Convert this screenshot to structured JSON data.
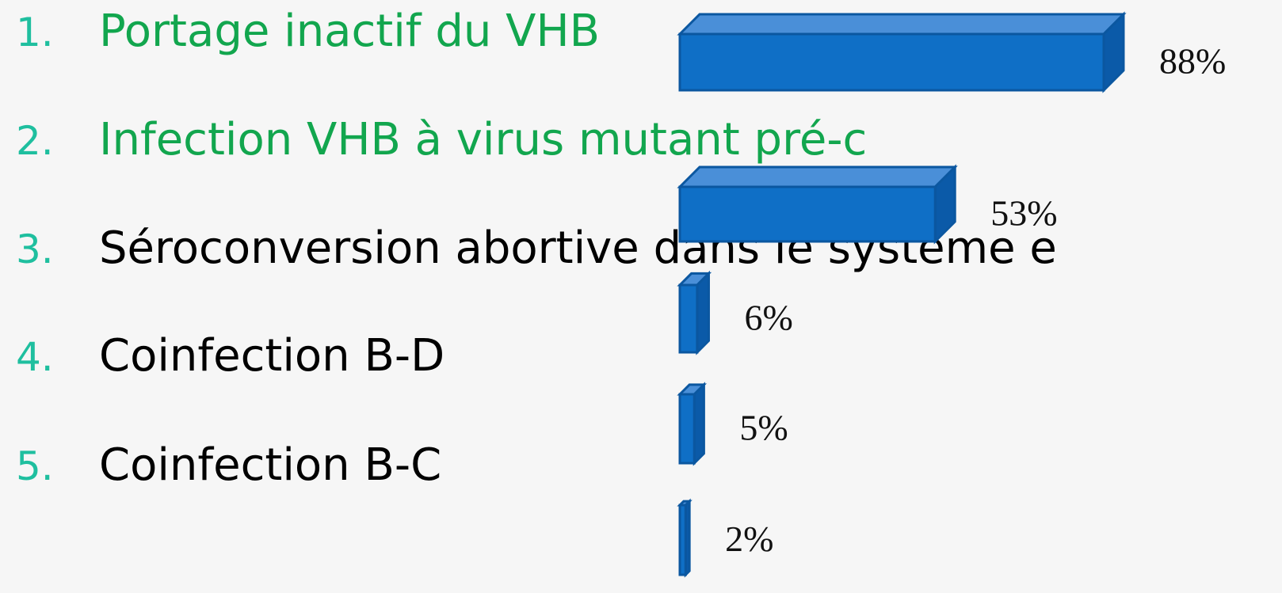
{
  "list": [
    {
      "number": "1.",
      "text": "Portage inactif du VHB",
      "color": "#12a64e"
    },
    {
      "number": "2.",
      "text": "Infection VHB à virus mutant pré-c",
      "color": "#12a64e"
    },
    {
      "number": "3.",
      "text": "Séroconversion abortive dans le système e",
      "color": "#000000"
    },
    {
      "number": "4.",
      "text": "Coinfection B-D",
      "color": "#000000"
    },
    {
      "number": "5.",
      "text": "Coinfection B-C",
      "color": "#000000"
    }
  ],
  "chart_data": {
    "type": "bar",
    "orientation": "horizontal",
    "values": [
      88,
      53,
      6,
      5,
      2
    ],
    "value_labels": [
      "88%",
      "53%",
      "6%",
      "5%",
      "2%"
    ],
    "color": "#0f6fc6"
  }
}
